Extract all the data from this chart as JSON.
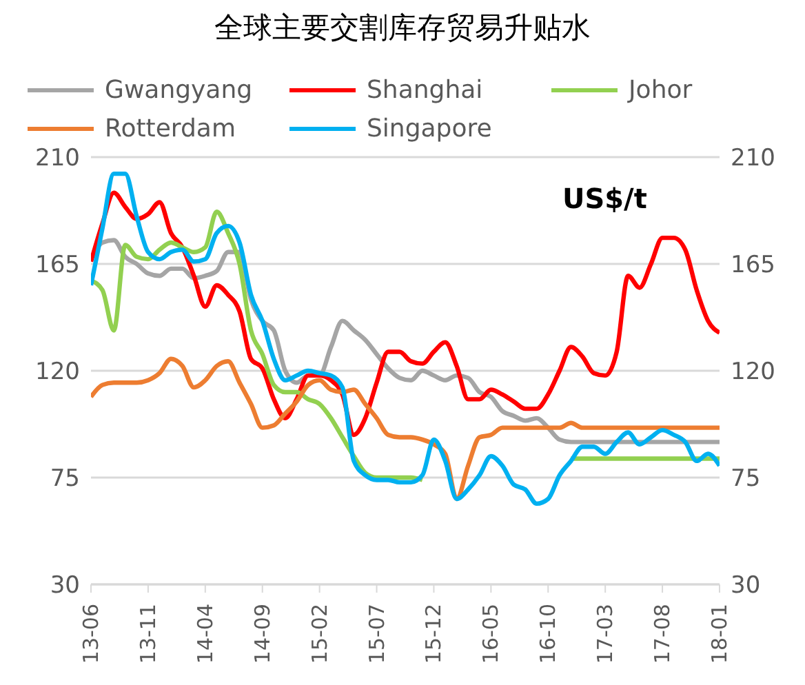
{
  "chart_data": {
    "type": "line",
    "title": "全球主要交割库存贸易升贴水",
    "categories": [
      "13-06",
      null,
      null,
      null,
      null,
      "13-11",
      null,
      null,
      null,
      null,
      "14-04",
      null,
      null,
      null,
      null,
      "14-09",
      null,
      null,
      null,
      null,
      "15-02",
      null,
      null,
      null,
      null,
      "15-07",
      null,
      null,
      null,
      null,
      "15-12",
      null,
      null,
      null,
      null,
      "16-05",
      null,
      null,
      null,
      null,
      "16-10",
      null,
      null,
      null,
      null,
      "17-03",
      null,
      null,
      null,
      null,
      "17-08",
      null,
      null,
      null,
      null,
      "18-01"
    ],
    "series": [
      {
        "name": "Gwangyang",
        "color": "#a5a5a5",
        "values": [
          167,
          174,
          175,
          168,
          165,
          161,
          160,
          163,
          163,
          159,
          160,
          162,
          170,
          170,
          150,
          141,
          137,
          120,
          115,
          118,
          118,
          130,
          141,
          137,
          133,
          127,
          121,
          117,
          116,
          120,
          118,
          116,
          118,
          117,
          111,
          109,
          103,
          101,
          99,
          100,
          96,
          91,
          90,
          90,
          90,
          90,
          90,
          90,
          90,
          90,
          90,
          90,
          90,
          90,
          90,
          90
        ]
      },
      {
        "name": "Shanghai",
        "color": "#ff0000",
        "values": [
          166,
          182,
          195,
          189,
          184,
          186,
          191,
          178,
          172,
          160,
          147,
          156,
          152,
          145,
          125,
          121,
          108,
          100,
          108,
          118,
          118,
          116,
          110,
          93,
          100,
          115,
          128,
          128,
          124,
          123,
          128,
          132,
          122,
          108,
          108,
          112,
          110,
          107,
          104,
          104,
          110,
          120,
          130,
          126,
          119,
          118,
          128,
          160,
          155,
          165,
          176,
          176,
          171,
          154,
          141,
          136
        ]
      },
      {
        "name": "Johor",
        "color": "#92d050",
        "values": [
          158,
          154,
          137,
          173,
          168,
          167,
          171,
          174,
          172,
          170,
          172,
          187,
          178,
          165,
          137,
          127,
          114,
          111,
          111,
          108,
          106,
          100,
          92,
          84,
          77,
          75,
          75,
          75,
          75,
          74,
          null,
          null,
          null,
          null,
          null,
          null,
          null,
          null,
          null,
          null,
          null,
          null,
          83,
          83,
          83,
          83,
          83,
          83,
          83,
          83,
          83,
          83,
          83,
          83,
          83,
          83
        ]
      },
      {
        "name": "Rotterdam",
        "color": "#ed7d31",
        "values": [
          109,
          114,
          115,
          115,
          115,
          116,
          119,
          125,
          122,
          113,
          116,
          122,
          124,
          115,
          106,
          96,
          97,
          102,
          107,
          114,
          116,
          112,
          111,
          112,
          106,
          100,
          93,
          92,
          92,
          91,
          89,
          85,
          66,
          80,
          92,
          93,
          96,
          96,
          96,
          96,
          96,
          96,
          98,
          96,
          96,
          96,
          96,
          96,
          96,
          96,
          96,
          96,
          96,
          96,
          96,
          96
        ]
      },
      {
        "name": "Singapore",
        "color": "#00b0f0",
        "values": [
          156,
          180,
          203,
          203,
          185,
          170,
          167,
          170,
          171,
          166,
          167,
          178,
          181,
          174,
          152,
          141,
          125,
          116,
          118,
          120,
          119,
          118,
          113,
          82,
          76,
          74,
          74,
          73,
          73,
          76,
          91,
          82,
          66,
          70,
          76,
          84,
          80,
          72,
          70,
          64,
          66,
          76,
          82,
          88,
          88,
          85,
          90,
          94,
          89,
          92,
          95,
          93,
          90,
          82,
          85,
          80
        ]
      }
    ],
    "ylim": [
      30,
      210
    ],
    "yticks": [
      30,
      75,
      120,
      165,
      210
    ],
    "y2lim": [
      30,
      210
    ],
    "y2ticks": [
      30,
      75,
      120,
      165,
      210
    ],
    "grid": "y",
    "legend": "top",
    "annotations": [
      "US$/t"
    ]
  }
}
